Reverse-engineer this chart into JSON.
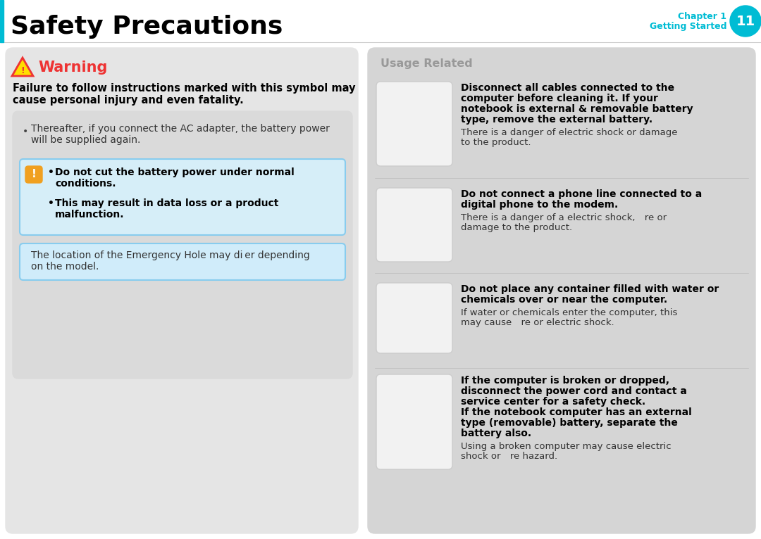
{
  "bg_color": "#ffffff",
  "title": "Safety Precautions",
  "title_color": "#000000",
  "title_bar_color": "#00bcd4",
  "chapter_color": "#00bcd4",
  "chapter_num": "11",
  "left_panel_bg": "#e5e5e5",
  "right_panel_bg": "#d5d5d5",
  "warning_red": "#ee3333",
  "warning_orange": "#f5a623",
  "warning_title": "Warning",
  "warning_body_line1": "Failure to follow instructions marked with this symbol may",
  "warning_body_line2": "cause personal injury and even fatality.",
  "bullet1_line1": "Thereafter, if you connect the AC adapter, the battery power",
  "bullet1_line2": "will be supplied again.",
  "blue_box1_items": [
    "Do not cut the battery power under normal conditions.",
    "This may result in data loss or a product malfunction."
  ],
  "blue_box2_text_line1": "The location of the Emergency Hole may di er depending",
  "blue_box2_text_line2": "on the model.",
  "right_title": "Usage Related",
  "right_title_color": "#999999",
  "items": [
    {
      "bold_lines": [
        "Disconnect all cables connected to the",
        "computer before cleaning it. If your",
        "notebook is external & removable battery",
        "type, remove the external battery."
      ],
      "normal_lines": [
        "There is a danger of electric shock or damage",
        "to the product."
      ]
    },
    {
      "bold_lines": [
        "Do not connect a phone line connected to a",
        "digital phone to the modem."
      ],
      "normal_lines": [
        "There is a danger of a electric shock, re or",
        "damage to the product."
      ]
    },
    {
      "bold_lines": [
        "Do not place any container filled with water or",
        "chemicals over or near the computer."
      ],
      "normal_lines": [
        "If water or chemicals enter the computer, this",
        "may cause re or electric shock."
      ]
    },
    {
      "bold_lines": [
        "If the computer is broken or dropped,",
        "disconnect the power cord and contact a",
        "service center for a safety check.",
        "If the notebook computer has an external",
        "type (removable) battery, separate the",
        "battery also."
      ],
      "normal_lines": [
        "Using a broken computer may cause electric",
        "shock or re hazard."
      ]
    }
  ]
}
